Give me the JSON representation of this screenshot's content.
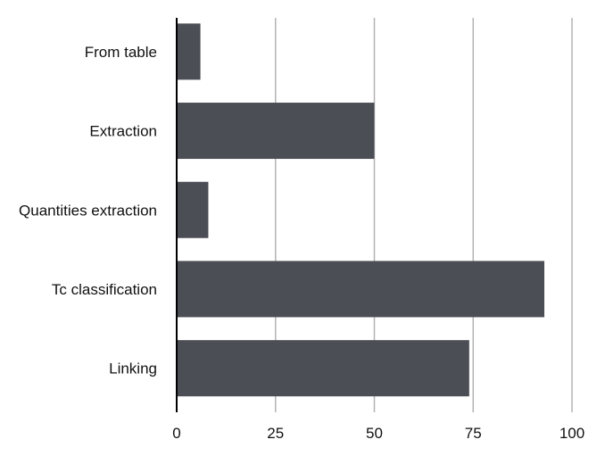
{
  "chart_data": {
    "type": "bar",
    "orientation": "horizontal",
    "categories": [
      "From table",
      "Extraction",
      "Quantities extraction",
      "Tc classification",
      "Linking"
    ],
    "values": [
      6,
      50,
      8,
      93,
      74
    ],
    "xlim": [
      0,
      100
    ],
    "xticks": [
      "0",
      "25",
      "50",
      "75",
      "100"
    ],
    "grid": "vertical",
    "bar_color": "#4b4e55",
    "grid_color": "#b3b3b3",
    "axis_color": "#000000"
  }
}
